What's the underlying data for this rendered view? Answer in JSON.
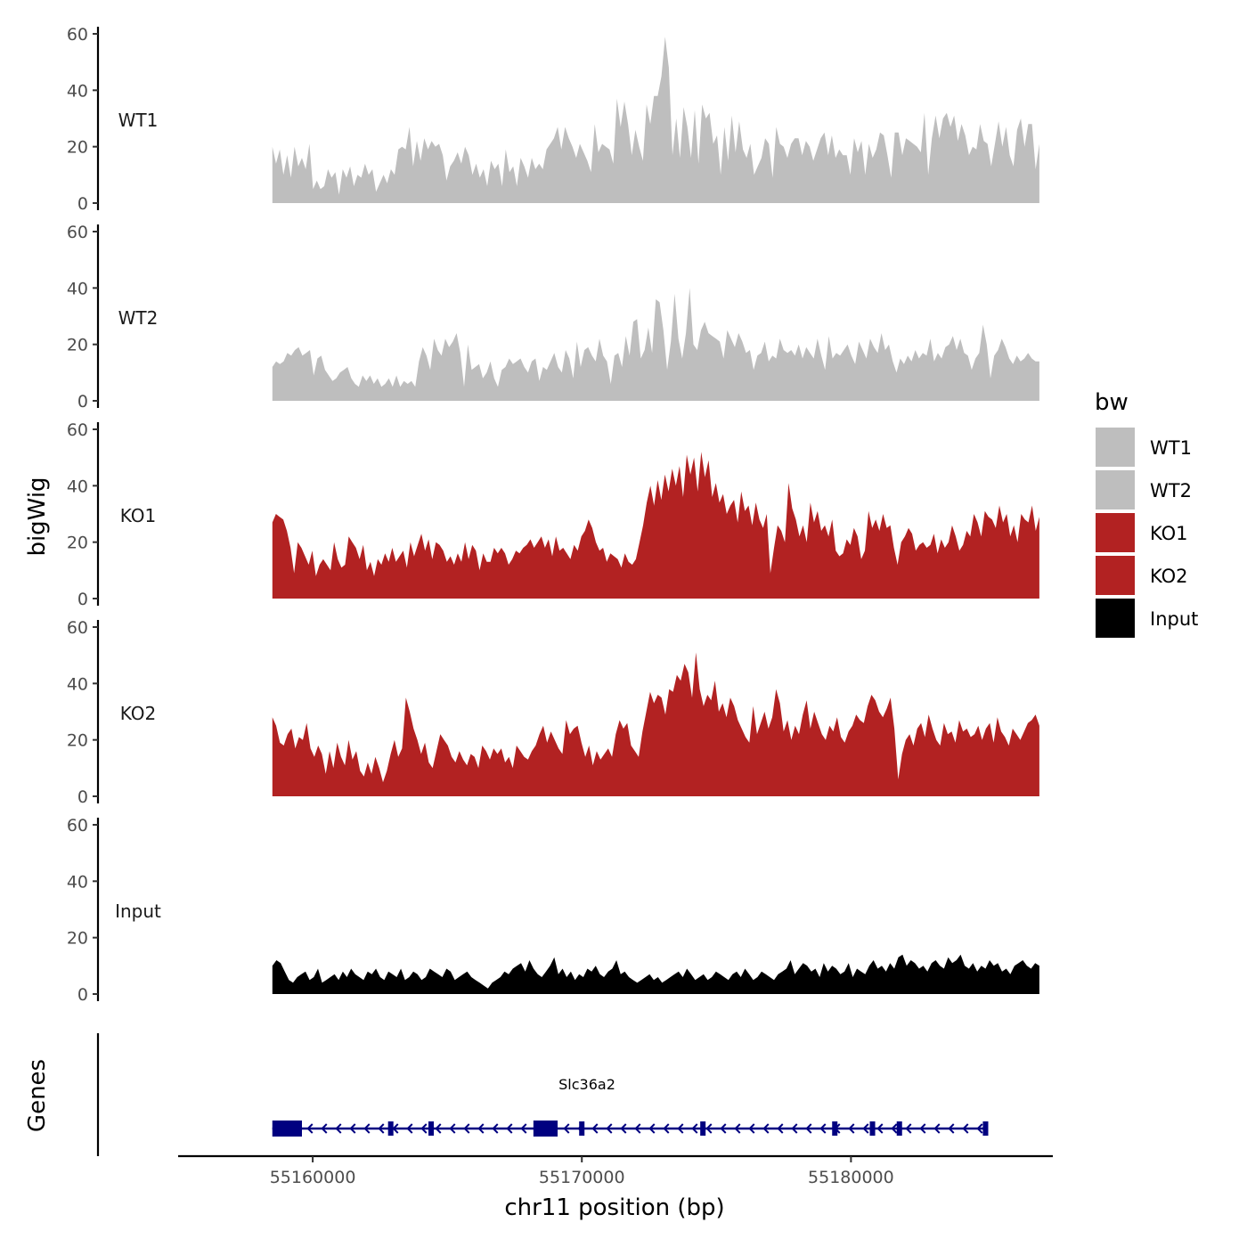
{
  "chart_data": {
    "type": "area",
    "chromosome": "chr11",
    "y_axis_title": "bigWig",
    "x_axis_title": "chr11 position (bp)",
    "gene_track_title": "Genes",
    "x_range": [
      55155000,
      55187500
    ],
    "data_range": [
      55158500,
      55187000
    ],
    "x_ticks": [
      55160000,
      55170000,
      55180000
    ],
    "x_tick_labels": [
      "55160000",
      "55170000",
      "55180000"
    ],
    "y_range": [
      0,
      60
    ],
    "y_ticks": [
      0,
      20,
      40,
      60
    ],
    "y_tick_labels": [
      "0",
      "20",
      "40",
      "60"
    ],
    "tracks": [
      {
        "name": "WT1",
        "color": "#bebebe",
        "values": [
          20,
          14,
          19,
          10,
          17,
          9,
          20,
          13,
          16,
          12,
          21,
          5,
          8,
          5,
          6,
          12,
          9,
          11,
          3,
          12,
          9,
          13,
          6,
          10,
          9,
          14,
          10,
          12,
          4,
          7,
          10,
          7,
          12,
          10,
          19,
          20,
          19,
          27,
          13,
          22,
          15,
          23,
          19,
          22,
          20,
          21,
          17,
          8,
          13,
          15,
          18,
          14,
          20,
          17,
          10,
          14,
          9,
          12,
          6,
          15,
          12,
          14,
          6,
          19,
          11,
          13,
          6,
          16,
          13,
          9,
          16,
          12,
          14,
          12,
          19,
          21,
          23,
          27,
          19,
          27,
          23,
          20,
          16,
          21,
          18,
          15,
          11,
          28,
          18,
          21,
          20,
          19,
          14,
          37,
          27,
          36,
          28,
          17,
          26,
          20,
          15,
          35,
          28,
          38,
          38,
          45,
          59,
          48,
          17,
          30,
          16,
          34,
          27,
          16,
          33,
          14,
          35,
          30,
          32,
          21,
          24,
          10,
          27,
          15,
          31,
          18,
          29,
          19,
          16,
          21,
          10,
          13,
          16,
          23,
          21,
          9,
          27,
          21,
          20,
          16,
          21,
          23,
          23,
          17,
          22,
          20,
          15,
          19,
          23,
          25,
          17,
          24,
          16,
          19,
          17,
          17,
          10,
          23,
          18,
          22,
          10,
          21,
          16,
          19,
          25,
          24,
          17,
          9,
          25,
          25,
          17,
          23,
          22,
          21,
          20,
          18,
          32,
          10,
          23,
          31,
          23,
          30,
          32,
          27,
          31,
          22,
          28,
          24,
          17,
          20,
          19,
          28,
          22,
          21,
          13,
          21,
          29,
          20,
          27,
          17,
          13,
          26,
          30,
          20,
          28,
          28,
          12,
          21
        ]
      },
      {
        "name": "WT2",
        "color": "#bebebe",
        "values": [
          12,
          14,
          13,
          14,
          17,
          16,
          18,
          19,
          16,
          17,
          18,
          9,
          15,
          16,
          11,
          9,
          7,
          8,
          10,
          11,
          12,
          8,
          6,
          5,
          9,
          7,
          9,
          6,
          8,
          5,
          6,
          8,
          5,
          9,
          5,
          7,
          6,
          7,
          5,
          14,
          19,
          16,
          11,
          22,
          18,
          16,
          22,
          19,
          21,
          24,
          17,
          5,
          20,
          11,
          12,
          13,
          8,
          10,
          14,
          8,
          5,
          11,
          12,
          15,
          13,
          14,
          15,
          12,
          10,
          14,
          15,
          7,
          12,
          11,
          14,
          17,
          12,
          10,
          18,
          15,
          8,
          21,
          12,
          18,
          19,
          16,
          14,
          22,
          16,
          14,
          6,
          16,
          17,
          12,
          23,
          16,
          28,
          29,
          15,
          18,
          26,
          17,
          36,
          35,
          25,
          11,
          21,
          38,
          22,
          15,
          24,
          40,
          20,
          18,
          25,
          28,
          24,
          23,
          22,
          21,
          15,
          25,
          22,
          19,
          24,
          21,
          17,
          18,
          11,
          16,
          17,
          21,
          14,
          16,
          15,
          22,
          18,
          17,
          18,
          16,
          20,
          15,
          19,
          17,
          15,
          22,
          16,
          11,
          23,
          15,
          17,
          16,
          18,
          20,
          16,
          13,
          21,
          18,
          15,
          22,
          19,
          17,
          24,
          18,
          20,
          14,
          10,
          15,
          13,
          16,
          14,
          18,
          15,
          17,
          16,
          22,
          14,
          17,
          15,
          19,
          20,
          23,
          18,
          22,
          17,
          16,
          11,
          15,
          17,
          27,
          20,
          8,
          16,
          18,
          22,
          19,
          15,
          13,
          16,
          14,
          15,
          17,
          15,
          14,
          14
        ]
      },
      {
        "name": "KO1",
        "color": "#b22222",
        "values": [
          27,
          30,
          29,
          28,
          24,
          18,
          9,
          20,
          18,
          15,
          12,
          17,
          8,
          12,
          14,
          12,
          10,
          20,
          14,
          11,
          12,
          22,
          20,
          18,
          14,
          19,
          10,
          13,
          8,
          14,
          12,
          16,
          13,
          18,
          13,
          15,
          17,
          11,
          20,
          15,
          19,
          23,
          17,
          21,
          14,
          20,
          19,
          17,
          13,
          15,
          12,
          16,
          13,
          20,
          14,
          19,
          17,
          10,
          16,
          13,
          13,
          18,
          16,
          18,
          16,
          12,
          14,
          17,
          16,
          18,
          19,
          21,
          18,
          20,
          22,
          18,
          21,
          15,
          22,
          17,
          18,
          16,
          14,
          19,
          17,
          22,
          24,
          28,
          25,
          20,
          17,
          18,
          13,
          16,
          15,
          14,
          11,
          16,
          13,
          12,
          14,
          20,
          26,
          34,
          40,
          33,
          42,
          35,
          44,
          38,
          46,
          40,
          47,
          36,
          51,
          44,
          50,
          38,
          52,
          43,
          49,
          36,
          41,
          34,
          37,
          30,
          33,
          35,
          27,
          38,
          31,
          33,
          26,
          34,
          28,
          25,
          30,
          9,
          18,
          26,
          24,
          20,
          41,
          32,
          28,
          22,
          26,
          20,
          34,
          27,
          31,
          24,
          26,
          22,
          28,
          17,
          15,
          16,
          21,
          19,
          25,
          22,
          14,
          17,
          31,
          25,
          28,
          24,
          30,
          25,
          26,
          18,
          12,
          20,
          22,
          25,
          23,
          17,
          19,
          20,
          18,
          19,
          23,
          16,
          21,
          18,
          20,
          26,
          22,
          17,
          19,
          24,
          22,
          30,
          27,
          22,
          31,
          29,
          28,
          25,
          33,
          27,
          30,
          22,
          26,
          20,
          30,
          28,
          27,
          33,
          24,
          29
        ]
      },
      {
        "name": "KO2",
        "color": "#b22222",
        "values": [
          28,
          25,
          19,
          18,
          22,
          24,
          17,
          21,
          20,
          26,
          17,
          14,
          18,
          15,
          8,
          16,
          10,
          19,
          14,
          11,
          20,
          13,
          16,
          9,
          7,
          12,
          8,
          14,
          10,
          5,
          9,
          15,
          20,
          14,
          17,
          35,
          30,
          24,
          20,
          15,
          19,
          12,
          10,
          16,
          22,
          20,
          18,
          14,
          12,
          16,
          13,
          11,
          15,
          14,
          10,
          18,
          16,
          13,
          17,
          15,
          17,
          12,
          14,
          10,
          18,
          16,
          14,
          13,
          16,
          18,
          22,
          25,
          19,
          23,
          20,
          17,
          15,
          27,
          22,
          24,
          25,
          19,
          14,
          18,
          11,
          16,
          13,
          15,
          17,
          14,
          22,
          27,
          24,
          26,
          18,
          16,
          14,
          23,
          30,
          37,
          33,
          36,
          35,
          29,
          38,
          37,
          43,
          41,
          47,
          44,
          35,
          51,
          38,
          32,
          36,
          34,
          41,
          30,
          33,
          28,
          35,
          32,
          27,
          24,
          21,
          19,
          32,
          22,
          26,
          30,
          24,
          28,
          38,
          33,
          23,
          27,
          20,
          25,
          22,
          29,
          34,
          24,
          30,
          26,
          22,
          20,
          25,
          23,
          28,
          21,
          19,
          23,
          25,
          29,
          27,
          26,
          32,
          36,
          34,
          30,
          28,
          31,
          35,
          24,
          6,
          15,
          20,
          22,
          18,
          24,
          26,
          21,
          29,
          24,
          20,
          18,
          26,
          22,
          23,
          19,
          27,
          23,
          24,
          21,
          22,
          25,
          20,
          24,
          26,
          19,
          28,
          23,
          21,
          18,
          24,
          22,
          20,
          23,
          26,
          27,
          29,
          25
        ]
      },
      {
        "name": "Input",
        "color": "#000000",
        "values": [
          10,
          12,
          11,
          8,
          5,
          4,
          6,
          7,
          8,
          5,
          6,
          9,
          4,
          5,
          6,
          7,
          5,
          8,
          6,
          9,
          7,
          6,
          5,
          8,
          7,
          9,
          6,
          5,
          8,
          7,
          6,
          9,
          5,
          6,
          8,
          7,
          5,
          6,
          9,
          8,
          7,
          6,
          9,
          8,
          5,
          6,
          7,
          8,
          6,
          5,
          4,
          3,
          2,
          4,
          5,
          6,
          8,
          7,
          9,
          10,
          11,
          8,
          12,
          9,
          7,
          6,
          8,
          10,
          13,
          7,
          9,
          6,
          8,
          5,
          7,
          6,
          9,
          8,
          10,
          7,
          6,
          8,
          9,
          12,
          7,
          8,
          6,
          5,
          4,
          5,
          6,
          7,
          5,
          6,
          4,
          5,
          6,
          7,
          8,
          6,
          9,
          7,
          5,
          6,
          7,
          5,
          6,
          8,
          7,
          6,
          5,
          7,
          8,
          6,
          9,
          7,
          5,
          6,
          8,
          7,
          6,
          5,
          7,
          8,
          9,
          12,
          7,
          9,
          11,
          10,
          8,
          9,
          6,
          11,
          8,
          10,
          9,
          7,
          8,
          11,
          6,
          9,
          8,
          7,
          10,
          12,
          9,
          10,
          8,
          11,
          9,
          13,
          14,
          10,
          12,
          11,
          9,
          10,
          8,
          11,
          12,
          10,
          9,
          13,
          11,
          12,
          14,
          10,
          9,
          11,
          8,
          10,
          9,
          12,
          10,
          11,
          8,
          9,
          7,
          10,
          11,
          12,
          10,
          9,
          11,
          10
        ]
      }
    ],
    "legend": {
      "title": "bw",
      "entries": [
        {
          "label": "WT1",
          "color": "#bebebe"
        },
        {
          "label": "WT2",
          "color": "#bebebe"
        },
        {
          "label": "KO1",
          "color": "#b22222"
        },
        {
          "label": "KO2",
          "color": "#b22222"
        },
        {
          "label": "Input",
          "color": "#000000"
        }
      ]
    },
    "gene": {
      "name": "Slc36a2",
      "color": "#000080",
      "strand": "-",
      "start": 55158500,
      "end": 55185000,
      "exons": [
        [
          55158500,
          55159600
        ],
        [
          55162800,
          55162950
        ],
        [
          55164300,
          55164400
        ],
        [
          55168200,
          55169100
        ],
        [
          55169900,
          55170050
        ],
        [
          55174400,
          55174500
        ],
        [
          55179300,
          55179400
        ],
        [
          55180700,
          55180800
        ],
        [
          55181700,
          55181800
        ],
        [
          55184900,
          55185100
        ]
      ]
    }
  }
}
